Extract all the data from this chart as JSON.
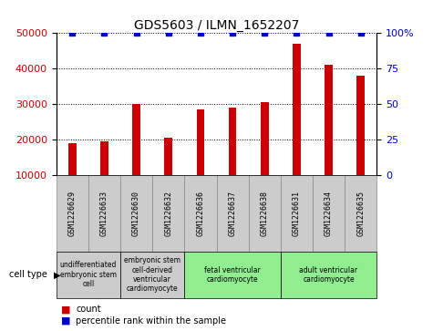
{
  "title": "GDS5603 / ILMN_1652207",
  "samples": [
    "GSM1226629",
    "GSM1226633",
    "GSM1226630",
    "GSM1226632",
    "GSM1226636",
    "GSM1226637",
    "GSM1226638",
    "GSM1226631",
    "GSM1226634",
    "GSM1226635"
  ],
  "counts": [
    19000,
    19500,
    30000,
    20500,
    28500,
    29000,
    30500,
    47000,
    41000,
    38000
  ],
  "percentiles": [
    100,
    100,
    100,
    100,
    100,
    100,
    100,
    100,
    100,
    100
  ],
  "ylim_left": [
    10000,
    50000
  ],
  "ylim_right": [
    0,
    100
  ],
  "yticks_left": [
    10000,
    20000,
    30000,
    40000,
    50000
  ],
  "yticks_right": [
    0,
    25,
    50,
    75,
    100
  ],
  "bar_color": "#cc0000",
  "scatter_color": "#0000cc",
  "cell_types": [
    {
      "label": "undifferentiated\nembryonic stem\ncell",
      "start": 0,
      "end": 2,
      "color": "#cccccc"
    },
    {
      "label": "embryonic stem\ncell-derived\nventricular\ncardiomyocyte",
      "start": 2,
      "end": 4,
      "color": "#cccccc"
    },
    {
      "label": "fetal ventricular\ncardiomyocyte",
      "start": 4,
      "end": 7,
      "color": "#90ee90"
    },
    {
      "label": "adult ventricular\ncardiomyocyte",
      "start": 7,
      "end": 10,
      "color": "#90ee90"
    }
  ],
  "cell_type_label": "cell type",
  "legend_count_label": "count",
  "legend_percentile_label": "percentile rank within the sample",
  "background_color": "#ffffff",
  "grid_color": "#000000",
  "tick_bg_color": "#cccccc",
  "bar_width": 0.25
}
